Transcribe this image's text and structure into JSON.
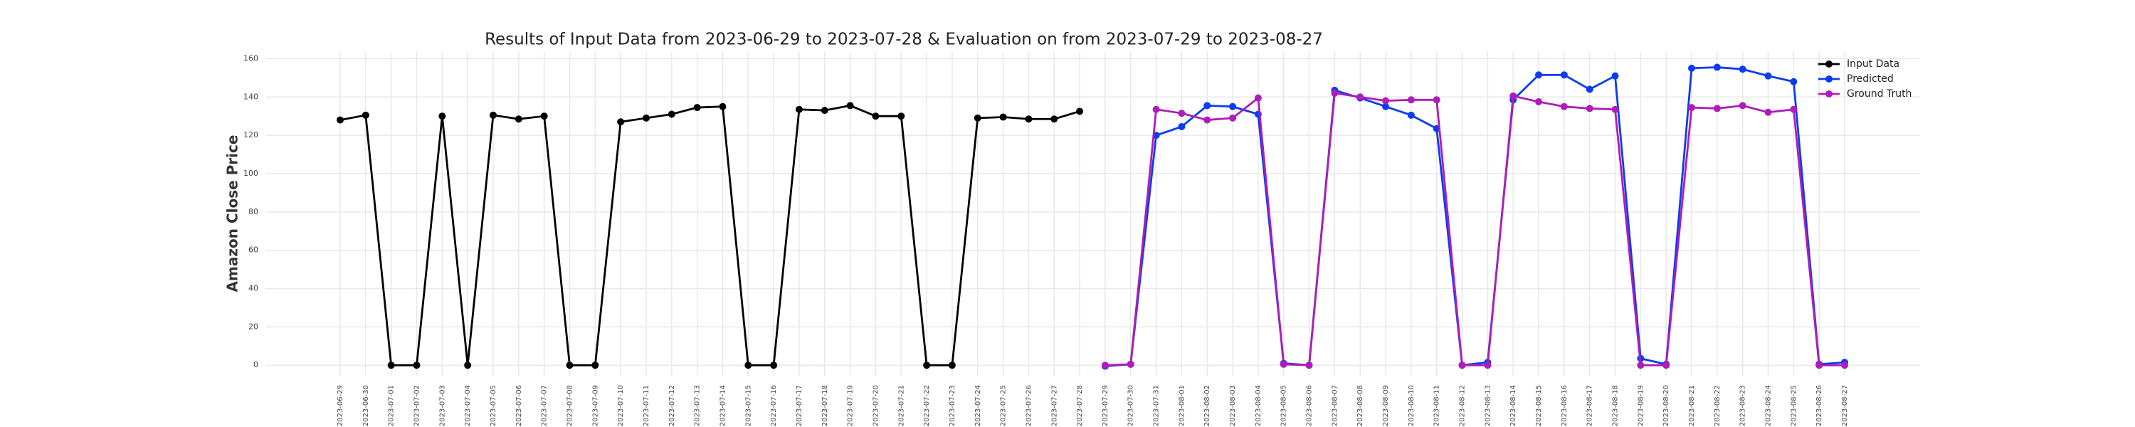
{
  "chart_data": {
    "type": "line",
    "title": "Results of Input Data from 2023-06-29 to 2023-07-28 & Evaluation on from 2023-07-29 to 2023-08-27",
    "ylabel": "Amazon Close Price",
    "categories": [
      "2023-06-29",
      "2023-06-30",
      "2023-07-01",
      "2023-07-02",
      "2023-07-03",
      "2023-07-04",
      "2023-07-05",
      "2023-07-06",
      "2023-07-07",
      "2023-07-08",
      "2023-07-09",
      "2023-07-10",
      "2023-07-11",
      "2023-07-12",
      "2023-07-13",
      "2023-07-14",
      "2023-07-15",
      "2023-07-16",
      "2023-07-17",
      "2023-07-18",
      "2023-07-19",
      "2023-07-20",
      "2023-07-21",
      "2023-07-22",
      "2023-07-23",
      "2023-07-24",
      "2023-07-25",
      "2023-07-26",
      "2023-07-27",
      "2023-07-28",
      "2023-07-29",
      "2023-07-30",
      "2023-07-31",
      "2023-08-01",
      "2023-08-02",
      "2023-08-03",
      "2023-08-04",
      "2023-08-05",
      "2023-08-06",
      "2023-08-07",
      "2023-08-08",
      "2023-08-09",
      "2023-08-10",
      "2023-08-11",
      "2023-08-12",
      "2023-08-13",
      "2023-08-14",
      "2023-08-15",
      "2023-08-16",
      "2023-08-17",
      "2023-08-18",
      "2023-08-19",
      "2023-08-20",
      "2023-08-21",
      "2023-08-22",
      "2023-08-23",
      "2023-08-24",
      "2023-08-25",
      "2023-08-26",
      "2023-08-27"
    ],
    "series": [
      {
        "name": "Input Data",
        "color": "#000000",
        "values": [
          128,
          130.5,
          0,
          0,
          130,
          0,
          130.5,
          128.5,
          130,
          0,
          0,
          127,
          129,
          131,
          134.5,
          135,
          0,
          0,
          133.5,
          133,
          135.5,
          130,
          130,
          0,
          0,
          129,
          129.5,
          128.5,
          128.5,
          132.5,
          null,
          null,
          null,
          null,
          null,
          null,
          null,
          null,
          null,
          null,
          null,
          null,
          null,
          null,
          null,
          null,
          null,
          null,
          null,
          null,
          null,
          null,
          null,
          null,
          null,
          null,
          null,
          null,
          null,
          null
        ]
      },
      {
        "name": "Predicted",
        "color": "#0b3bf2",
        "values": [
          null,
          null,
          null,
          null,
          null,
          null,
          null,
          null,
          null,
          null,
          null,
          null,
          null,
          null,
          null,
          null,
          null,
          null,
          null,
          null,
          null,
          null,
          null,
          null,
          null,
          null,
          null,
          null,
          null,
          null,
          -0.5,
          0.5,
          120,
          124.5,
          135.5,
          135,
          131,
          1,
          0,
          143.5,
          139.5,
          135,
          130.5,
          123.5,
          0,
          1.5,
          138.5,
          151.5,
          151.5,
          144,
          151,
          3.5,
          0.5,
          155,
          155.5,
          154.5,
          151,
          148,
          0.5,
          1.5
        ]
      },
      {
        "name": "Ground Truth",
        "color": "#b01cb8",
        "values": [
          null,
          null,
          null,
          null,
          null,
          null,
          null,
          null,
          null,
          null,
          null,
          null,
          null,
          null,
          null,
          null,
          null,
          null,
          null,
          null,
          null,
          null,
          null,
          null,
          null,
          null,
          null,
          null,
          null,
          null,
          0,
          0.5,
          133.5,
          131.5,
          128,
          129,
          139.5,
          0.5,
          0,
          142,
          140,
          138,
          138.5,
          138.5,
          0,
          0,
          140.5,
          137.5,
          135,
          134,
          133.5,
          0,
          0,
          134.5,
          134,
          135.5,
          132,
          133.5,
          0,
          0
        ]
      }
    ],
    "ylim": [
      -5.5,
      163.5
    ],
    "yticks": [
      0,
      20,
      40,
      60,
      80,
      100,
      120,
      140,
      160
    ],
    "grid": true,
    "legend": "upper right"
  }
}
